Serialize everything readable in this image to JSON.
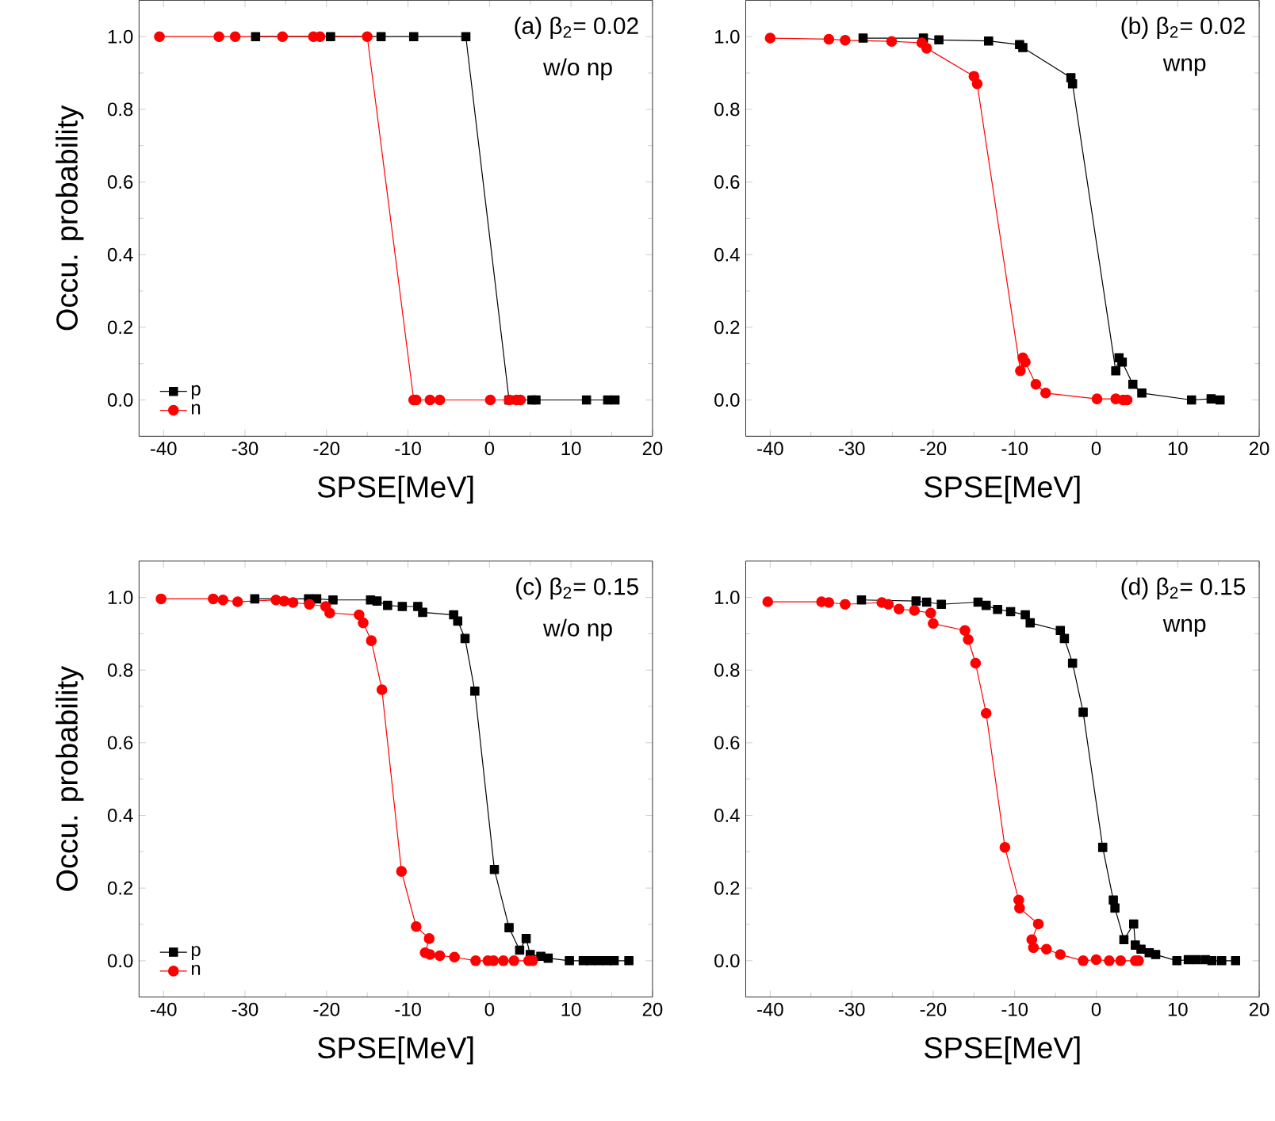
{
  "chart_data": [
    {
      "type": "line",
      "annotations": [
        "(a) β$_{2}$= 0.02",
        "w/o np"
      ],
      "xlabel": "SPSE[MeV]",
      "ylabel": "Occu. probability",
      "xlim": [
        -43,
        20
      ],
      "ylim": [
        -0.1,
        1.1
      ],
      "xticks": [
        -40,
        -30,
        -20,
        -10,
        0,
        10,
        20
      ],
      "yticks": [
        {
          "value": 0,
          "label": "0.0"
        },
        {
          "value": 0.2,
          "label": "0.2"
        },
        {
          "value": 0.4,
          "label": "0.4"
        },
        {
          "value": 0.6,
          "label": "0.6"
        },
        {
          "value": 0.8,
          "label": "0.8"
        },
        {
          "value": 1,
          "label": "1.0"
        }
      ],
      "legend": "bottom left",
      "grid": false,
      "series": [
        {
          "name": "p",
          "color": "#000000",
          "marker": "square",
          "x": [
            -28.7,
            -19.5,
            -13.3,
            -9.3,
            -2.9,
            2.4,
            5.2,
            5.7,
            11.9,
            14.5,
            15.4
          ],
          "values": [
            1,
            1,
            1,
            1,
            1,
            0,
            0,
            0,
            0,
            0,
            0
          ]
        },
        {
          "name": "n",
          "color": "#ff0000",
          "marker": "circle",
          "x": [
            -40.5,
            -33.2,
            -31.2,
            -25.4,
            -21.6,
            -20.8,
            -15.0,
            -9.3,
            -9.0,
            -7.3,
            -6.1,
            0.1,
            2.4,
            3.3,
            3.8
          ],
          "values": [
            1,
            1,
            1,
            1,
            1,
            1,
            1,
            0,
            0,
            0,
            0,
            0,
            0,
            0,
            0
          ]
        }
      ]
    },
    {
      "type": "line",
      "annotations": [
        "(b) β$_{2}$= 0.02",
        "wnp"
      ],
      "xlabel": "SPSE[MeV]",
      "xlim": [
        -43,
        20
      ],
      "ylim": [
        -0.1,
        1.1
      ],
      "xticks": [
        -40,
        -30,
        -20,
        -10,
        0,
        10,
        20
      ],
      "yticks": [
        {
          "value": 0,
          "label": "0.0"
        },
        {
          "value": 0.2,
          "label": "0.2"
        },
        {
          "value": 0.4,
          "label": "0.4"
        },
        {
          "value": 0.6,
          "label": "0.6"
        },
        {
          "value": 0.8,
          "label": "0.8"
        },
        {
          "value": 1,
          "label": "1.0"
        }
      ],
      "grid": false,
      "series": [
        {
          "color": "#000000",
          "marker": "square",
          "x": [
            -28.6,
            -21.2,
            -19.3,
            -13.2,
            -9.4,
            -9.0,
            -3.1,
            -2.9,
            2.4,
            2.8,
            3.2,
            4.5,
            5.6,
            11.7,
            14.1,
            15.2
          ],
          "values": [
            0.996,
            0.996,
            0.991,
            0.988,
            0.978,
            0.97,
            0.887,
            0.87,
            0.08,
            0.116,
            0.104,
            0.043,
            0.019,
            0,
            0.003,
            0
          ]
        },
        {
          "color": "#ff0000",
          "marker": "circle",
          "x": [
            -40.0,
            -32.8,
            -30.8,
            -25.1,
            -21.4,
            -20.8,
            -15.0,
            -14.6,
            -9.3,
            -9.0,
            -8.7,
            -7.4,
            -6.2,
            0.1,
            2.4,
            3.3,
            3.8
          ],
          "values": [
            0.996,
            0.993,
            0.99,
            0.987,
            0.983,
            0.968,
            0.891,
            0.87,
            0.08,
            0.116,
            0.104,
            0.043,
            0.019,
            0.003,
            0.003,
            0,
            0
          ]
        }
      ]
    },
    {
      "type": "line",
      "annotations": [
        "(c) β$_{2}$= 0.15",
        "w/o np"
      ],
      "xlabel": "SPSE[MeV]",
      "ylabel": "Occu. probability",
      "xlim": [
        -43,
        20
      ],
      "ylim": [
        -0.1,
        1.1
      ],
      "xticks": [
        -40,
        -30,
        -20,
        -10,
        0,
        10,
        20
      ],
      "yticks": [
        {
          "value": 0,
          "label": "0.0"
        },
        {
          "value": 0.2,
          "label": "0.2"
        },
        {
          "value": 0.4,
          "label": "0.4"
        },
        {
          "value": 0.6,
          "label": "0.6"
        },
        {
          "value": 0.8,
          "label": "0.8"
        },
        {
          "value": 1,
          "label": "1.0"
        }
      ],
      "legend": "bottom left",
      "grid": false,
      "series": [
        {
          "name": "p",
          "color": "#000000",
          "marker": "square",
          "x": [
            -28.8,
            -22.2,
            -21.2,
            -19.2,
            -14.6,
            -13.8,
            -12.5,
            -10.7,
            -8.8,
            -8.2,
            -4.4,
            -3.9,
            -3.0,
            -1.8,
            0.6,
            2.2,
            2.4,
            3.7,
            4.5,
            5.0,
            6.3,
            7.2,
            9.8,
            11.5,
            12.4,
            13.4,
            14.4,
            15.3,
            17.1
          ],
          "values": [
            0.996,
            0.996,
            0.996,
            0.993,
            0.993,
            0.99,
            0.978,
            0.975,
            0.975,
            0.959,
            0.952,
            0.935,
            0.887,
            0.742,
            0.251,
            null,
            0.091,
            0.029,
            0.061,
            0.017,
            0.012,
            0.007,
            0,
            0,
            0,
            0,
            0,
            0,
            0
          ]
        },
        {
          "name": "n",
          "color": "#ff0000",
          "marker": "circle",
          "x": [
            -40.3,
            -33.9,
            -32.7,
            -30.9,
            -26.2,
            -25.2,
            -24.1,
            -22.1,
            -20.1,
            -19.6,
            -16.0,
            -15.5,
            -14.5,
            -13.2,
            -10.8,
            -9.2,
            -9.0,
            -7.4,
            -7.9,
            -7.3,
            -6.1,
            -4.3,
            -1.7,
            -0.2,
            0.5,
            1.7,
            3.0,
            4.8,
            5.3
          ],
          "values": [
            0.996,
            0.996,
            0.993,
            0.988,
            0.993,
            0.99,
            0.986,
            0.981,
            0.975,
            0.957,
            0.952,
            0.93,
            0.881,
            0.746,
            0.246,
            null,
            0.094,
            0.061,
            0.022,
            0.017,
            0.014,
            0.01,
            0,
            0,
            0,
            0,
            0,
            0,
            0
          ]
        }
      ]
    },
    {
      "type": "line",
      "annotations": [
        "(d) β$_{2}$= 0.15",
        "wnp"
      ],
      "xlabel": "SPSE[MeV]",
      "xlim": [
        -43,
        20
      ],
      "ylim": [
        -0.1,
        1.1
      ],
      "xticks": [
        -40,
        -30,
        -20,
        -10,
        0,
        10,
        20
      ],
      "yticks": [
        {
          "value": 0,
          "label": "0.0"
        },
        {
          "value": 0.2,
          "label": "0.2"
        },
        {
          "value": 0.4,
          "label": "0.4"
        },
        {
          "value": 0.6,
          "label": "0.6"
        },
        {
          "value": 0.8,
          "label": "0.8"
        },
        {
          "value": 1,
          "label": "1.0"
        }
      ],
      "grid": false,
      "series": [
        {
          "color": "#000000",
          "marker": "square",
          "x": [
            -28.8,
            -22.1,
            -20.8,
            -19.0,
            -14.5,
            -13.5,
            -12.1,
            -10.5,
            -8.7,
            -8.1,
            -4.4,
            -3.9,
            -2.9,
            -1.6,
            0.8,
            2.1,
            2.3,
            3.4,
            4.6,
            4.8,
            5.5,
            6.5,
            7.3,
            9.9,
            11.3,
            12.3,
            13.4,
            14.2,
            15.4,
            17.1
          ],
          "values": [
            0.993,
            0.99,
            0.987,
            0.981,
            0.987,
            0.978,
            0.967,
            0.961,
            0.952,
            0.93,
            0.909,
            0.887,
            0.819,
            0.684,
            0.312,
            0.167,
            0.145,
            0.058,
            0.101,
            0.043,
            0.032,
            0.022,
            0.017,
            0,
            0.003,
            0.003,
            0.003,
            0,
            0,
            0
          ]
        },
        {
          "color": "#ff0000",
          "marker": "circle",
          "x": [
            -40.3,
            -33.7,
            -32.8,
            -30.8,
            -26.3,
            -25.5,
            -24.2,
            -22.3,
            -20.3,
            -20.0,
            -16.1,
            -15.7,
            -14.8,
            -13.5,
            -11.2,
            -9.5,
            -9.4,
            -7.1,
            -7.9,
            -7.7,
            -6.1,
            -4.4,
            -1.6,
            0,
            1.6,
            3.0,
            4.8,
            5.2
          ],
          "values": [
            0.988,
            0.988,
            0.986,
            0.981,
            0.986,
            0.981,
            0.968,
            0.964,
            0.957,
            0.928,
            0.909,
            0.884,
            0.819,
            0.681,
            0.312,
            0.167,
            0.145,
            0.101,
            0.058,
            0.036,
            0.032,
            0.017,
            0,
            0.003,
            0,
            0,
            0,
            0
          ]
        }
      ]
    }
  ]
}
